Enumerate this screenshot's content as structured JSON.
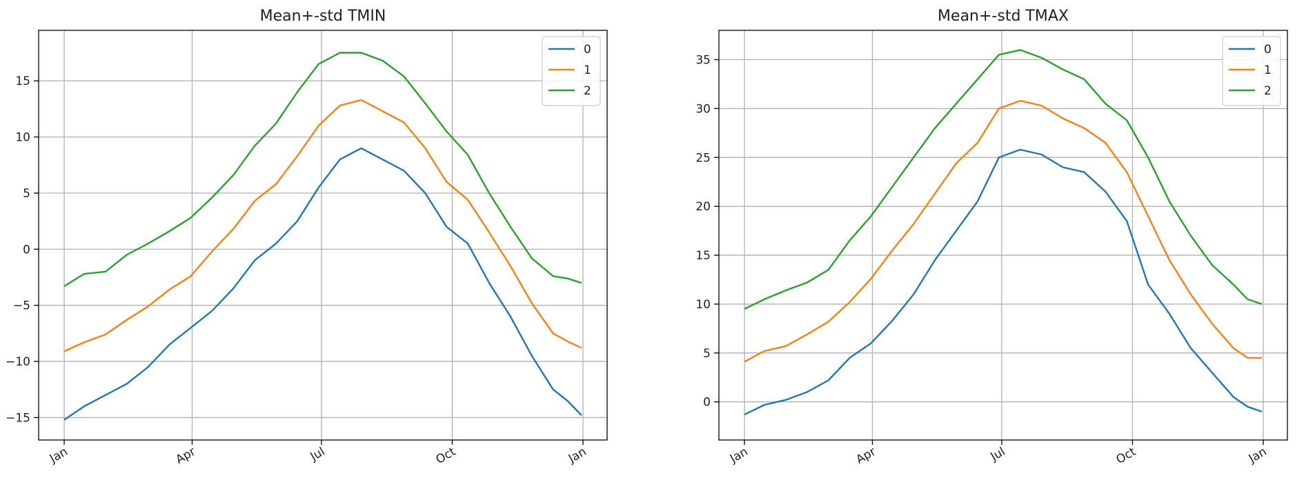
{
  "figure": {
    "colors": [
      "#1f77b4",
      "#ff7f0e",
      "#2ca02c"
    ]
  },
  "chart_data": [
    {
      "type": "line",
      "title": "Mean+-std   TMIN",
      "xlabel": "",
      "ylabel": "",
      "x_unit": "day of year",
      "x_range": [
        1,
        365
      ],
      "xticks": [
        {
          "day": 1,
          "label": "Jan"
        },
        {
          "day": 91,
          "label": "Apr"
        },
        {
          "day": 182,
          "label": "Jul"
        },
        {
          "day": 274,
          "label": "Oct"
        },
        {
          "day": 366,
          "label": "Jan"
        }
      ],
      "ylim": [
        -17.0,
        19.5
      ],
      "yticks": [
        -15,
        -10,
        -5,
        0,
        5,
        10,
        15
      ],
      "grid": true,
      "legend": "top-right",
      "series": [
        {
          "name": "0",
          "color": "#1f77b4",
          "x": [
            1,
            15,
            30,
            45,
            60,
            75,
            90,
            105,
            120,
            135,
            150,
            165,
            180,
            195,
            210,
            225,
            240,
            255,
            270,
            285,
            300,
            315,
            330,
            345,
            355,
            365
          ],
          "y": [
            -15.2,
            -14.0,
            -13.0,
            -12.0,
            -10.5,
            -8.5,
            -7.0,
            -5.5,
            -3.5,
            -1.0,
            0.5,
            2.5,
            5.5,
            8.0,
            9.0,
            8.0,
            7.0,
            5.0,
            2.0,
            0.5,
            -3.0,
            -6.0,
            -9.5,
            -12.5,
            -13.5,
            -14.8
          ]
        },
        {
          "name": "1",
          "color": "#ff7f0e",
          "x": [
            1,
            15,
            30,
            45,
            60,
            75,
            90,
            105,
            120,
            135,
            150,
            165,
            180,
            195,
            210,
            225,
            240,
            255,
            270,
            285,
            300,
            315,
            330,
            345,
            355,
            365
          ],
          "y": [
            -9.1,
            -8.3,
            -7.6,
            -6.3,
            -5.1,
            -3.6,
            -2.4,
            -0.2,
            1.8,
            4.3,
            5.8,
            8.3,
            11.0,
            12.8,
            13.3,
            12.3,
            11.3,
            9.0,
            6.0,
            4.4,
            1.5,
            -1.5,
            -4.8,
            -7.5,
            -8.2,
            -8.8
          ]
        },
        {
          "name": "2",
          "color": "#2ca02c",
          "x": [
            1,
            15,
            30,
            45,
            60,
            75,
            90,
            105,
            120,
            135,
            150,
            165,
            180,
            195,
            210,
            225,
            240,
            255,
            270,
            285,
            300,
            315,
            330,
            345,
            355,
            365
          ],
          "y": [
            -3.3,
            -2.2,
            -2.0,
            -0.5,
            0.5,
            1.6,
            2.8,
            4.6,
            6.6,
            9.2,
            11.2,
            14.0,
            16.5,
            17.5,
            17.5,
            16.8,
            15.4,
            13.0,
            10.5,
            8.4,
            5.0,
            2.0,
            -0.8,
            -2.4,
            -2.6,
            -3.0
          ]
        }
      ]
    },
    {
      "type": "line",
      "title": "Mean+-std   TMAX",
      "xlabel": "",
      "ylabel": "",
      "x_unit": "day of year",
      "x_range": [
        1,
        365
      ],
      "xticks": [
        {
          "day": 1,
          "label": "Jan"
        },
        {
          "day": 91,
          "label": "Apr"
        },
        {
          "day": 182,
          "label": "Jul"
        },
        {
          "day": 274,
          "label": "Oct"
        },
        {
          "day": 366,
          "label": "Jan"
        }
      ],
      "ylim": [
        -3.9,
        38.0
      ],
      "yticks": [
        0,
        5,
        10,
        15,
        20,
        25,
        30,
        35
      ],
      "grid": true,
      "legend": "top-right",
      "series": [
        {
          "name": "0",
          "color": "#1f77b4",
          "x": [
            1,
            15,
            30,
            45,
            60,
            75,
            90,
            105,
            120,
            135,
            150,
            165,
            180,
            195,
            210,
            225,
            240,
            255,
            270,
            285,
            300,
            315,
            330,
            345,
            355,
            365
          ],
          "y": [
            -1.3,
            -0.3,
            0.2,
            1.0,
            2.2,
            4.5,
            6.0,
            8.3,
            11.0,
            14.5,
            17.5,
            20.5,
            25.0,
            25.8,
            25.3,
            24.0,
            23.5,
            21.5,
            18.5,
            12.0,
            9.0,
            5.5,
            3.0,
            0.5,
            -0.5,
            -1.0
          ]
        },
        {
          "name": "1",
          "color": "#ff7f0e",
          "x": [
            1,
            15,
            30,
            45,
            60,
            75,
            90,
            105,
            120,
            135,
            150,
            165,
            180,
            195,
            210,
            225,
            240,
            255,
            270,
            285,
            300,
            315,
            330,
            345,
            355,
            365
          ],
          "y": [
            4.1,
            5.2,
            5.7,
            6.9,
            8.2,
            10.2,
            12.6,
            15.5,
            18.2,
            21.3,
            24.4,
            26.5,
            30.0,
            30.8,
            30.3,
            29.0,
            28.0,
            26.5,
            23.5,
            19.0,
            14.5,
            11.0,
            8.0,
            5.5,
            4.5,
            4.5
          ]
        },
        {
          "name": "2",
          "color": "#2ca02c",
          "x": [
            1,
            15,
            30,
            45,
            60,
            75,
            90,
            105,
            120,
            135,
            150,
            165,
            180,
            195,
            210,
            225,
            240,
            255,
            270,
            285,
            300,
            315,
            330,
            345,
            355,
            365
          ],
          "y": [
            9.5,
            10.5,
            11.4,
            12.2,
            13.5,
            16.5,
            19.0,
            22.0,
            25.0,
            28.0,
            30.5,
            33.0,
            35.5,
            36.0,
            35.2,
            34.0,
            33.0,
            30.5,
            28.8,
            25.0,
            20.5,
            17.0,
            14.0,
            12.0,
            10.5,
            10.0
          ]
        }
      ]
    }
  ]
}
